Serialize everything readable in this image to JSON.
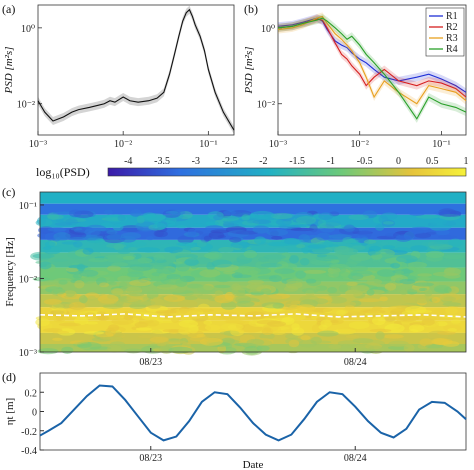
{
  "panels": {
    "a": {
      "letter": "(a)"
    },
    "b": {
      "letter": "(b)"
    },
    "c": {
      "letter": "(c)"
    },
    "d": {
      "letter": "(d)"
    }
  },
  "colorbar": {
    "label": "log₁₀(PSD)",
    "ticks": [
      "-4",
      "-3.5",
      "-3",
      "-2.5",
      "-2",
      "-1.5",
      "-1",
      "-0.5",
      "0",
      "0.5",
      "1"
    ],
    "range": [
      -4.3,
      1
    ],
    "colors": [
      "#3b1aa8",
      "#2f6fe0",
      "#21b1c4",
      "#6cc97a",
      "#e6c43b",
      "#f6f13a"
    ]
  },
  "chart_data": [
    {
      "type": "line",
      "panel": "a",
      "xscale": "log",
      "yscale": "log",
      "xlim": [
        0.001,
        0.2
      ],
      "ylim": [
        0.0015,
        4
      ],
      "ylabel": "PSD [m²s]",
      "xticks": [
        "10⁻³",
        "10⁻²",
        "10⁻¹"
      ],
      "yticks": [
        "10⁻²",
        "10⁰"
      ],
      "series": [
        {
          "color": "#111111",
          "x": [
            0.001,
            0.0012,
            0.0015,
            0.002,
            0.0025,
            0.003,
            0.004,
            0.005,
            0.006,
            0.007,
            0.008,
            0.009,
            0.01,
            0.012,
            0.015,
            0.02,
            0.025,
            0.03,
            0.035,
            0.04,
            0.045,
            0.05,
            0.055,
            0.06,
            0.065,
            0.07,
            0.08,
            0.09,
            0.1,
            0.12,
            0.15,
            0.2
          ],
          "y": [
            0.012,
            0.006,
            0.0035,
            0.0045,
            0.006,
            0.007,
            0.008,
            0.009,
            0.01,
            0.012,
            0.011,
            0.013,
            0.015,
            0.012,
            0.011,
            0.012,
            0.014,
            0.02,
            0.06,
            0.2,
            0.6,
            1.5,
            2.5,
            3.0,
            2.0,
            1.2,
            0.6,
            0.25,
            0.08,
            0.02,
            0.006,
            0.002
          ]
        }
      ]
    },
    {
      "type": "line",
      "panel": "b",
      "xscale": "log",
      "yscale": "log",
      "xlim": [
        0.001,
        0.2
      ],
      "ylim": [
        0.0015,
        4
      ],
      "ylabel": "PSD [m²s]",
      "xticks": [
        "10⁻³",
        "10⁻²",
        "10⁻¹"
      ],
      "yticks": [
        "10⁻²",
        "10⁰"
      ],
      "legend": "top-right",
      "series": [
        {
          "name": "R1",
          "color": "#1f2fd6",
          "x": [
            0.001,
            0.0015,
            0.002,
            0.003,
            0.0035,
            0.004,
            0.005,
            0.006,
            0.007,
            0.008,
            0.01,
            0.012,
            0.015,
            0.02,
            0.03,
            0.05,
            0.07,
            0.1,
            0.15,
            0.2
          ],
          "y": [
            1.1,
            1.2,
            1.4,
            1.8,
            1.5,
            0.9,
            0.45,
            0.35,
            0.3,
            0.22,
            0.15,
            0.12,
            0.08,
            0.05,
            0.04,
            0.05,
            0.06,
            0.045,
            0.03,
            0.02
          ]
        },
        {
          "name": "R2",
          "color": "#d62020",
          "x": [
            0.001,
            0.0015,
            0.002,
            0.003,
            0.0035,
            0.004,
            0.005,
            0.006,
            0.007,
            0.008,
            0.01,
            0.012,
            0.015,
            0.02,
            0.03,
            0.05,
            0.07,
            0.1,
            0.15,
            0.2
          ],
          "y": [
            1.0,
            1.1,
            1.3,
            1.7,
            1.6,
            1.0,
            0.4,
            0.2,
            0.15,
            0.1,
            0.06,
            0.03,
            0.05,
            0.08,
            0.04,
            0.03,
            0.04,
            0.035,
            0.025,
            0.015
          ]
        },
        {
          "name": "R3",
          "color": "#e8a020",
          "x": [
            0.001,
            0.0015,
            0.002,
            0.003,
            0.0035,
            0.004,
            0.005,
            0.006,
            0.007,
            0.008,
            0.01,
            0.012,
            0.015,
            0.02,
            0.03,
            0.05,
            0.07,
            0.1,
            0.15,
            0.2
          ],
          "y": [
            0.9,
            1.0,
            1.2,
            1.8,
            2.0,
            1.3,
            0.7,
            0.5,
            0.35,
            0.25,
            0.12,
            0.05,
            0.015,
            0.04,
            0.02,
            0.01,
            0.03,
            0.025,
            0.02,
            0.012
          ]
        },
        {
          "name": "R4",
          "color": "#2aa02a",
          "x": [
            0.001,
            0.0015,
            0.002,
            0.003,
            0.0035,
            0.004,
            0.005,
            0.006,
            0.007,
            0.008,
            0.01,
            0.012,
            0.015,
            0.02,
            0.03,
            0.05,
            0.07,
            0.1,
            0.15,
            0.2
          ],
          "y": [
            1.0,
            1.1,
            1.3,
            1.6,
            1.8,
            1.5,
            1.0,
            0.7,
            0.5,
            0.6,
            0.35,
            0.2,
            0.12,
            0.06,
            0.02,
            0.004,
            0.015,
            0.01,
            0.008,
            0.006
          ]
        }
      ]
    },
    {
      "type": "heatmap",
      "panel": "c",
      "yscale": "log",
      "ylim": [
        0.001,
        0.15
      ],
      "ylabel": "Frequency [Hz]",
      "yticks": [
        "10⁻³",
        "10⁻²",
        "10⁻¹"
      ],
      "xticks": [
        "08/23",
        "08/24"
      ],
      "rows": [
        {
          "f": 0.12,
          "value": -2.2
        },
        {
          "f": 0.09,
          "value": -3.2
        },
        {
          "f": 0.06,
          "value": -2.3
        },
        {
          "f": 0.04,
          "value": -3.3
        },
        {
          "f": 0.028,
          "value": -2.0
        },
        {
          "f": 0.018,
          "value": -1.5
        },
        {
          "f": 0.011,
          "value": -1.1
        },
        {
          "f": 0.0075,
          "value": -0.8
        },
        {
          "f": 0.005,
          "value": -0.4
        },
        {
          "f": 0.0033,
          "value": 0.3
        },
        {
          "f": 0.0022,
          "value": 0.4
        },
        {
          "f": 0.0015,
          "value": -0.3
        },
        {
          "f": 0.0011,
          "value": -0.6
        }
      ],
      "peak_line": {
        "color": "#ffffff",
        "t": [
          0,
          0.1,
          0.2,
          0.3,
          0.4,
          0.5,
          0.6,
          0.7,
          0.8,
          0.9,
          1.0
        ],
        "f": [
          0.0032,
          0.0031,
          0.0033,
          0.003,
          0.0032,
          0.0031,
          0.0033,
          0.003,
          0.0031,
          0.0032,
          0.003
        ]
      }
    },
    {
      "type": "line",
      "panel": "d",
      "ylim": [
        -0.4,
        0.4
      ],
      "xlabel": "Date",
      "ylabel": "ηt [m]",
      "yticks": [
        "-0.4",
        "-0.2",
        "0",
        "0.2"
      ],
      "xticks": [
        "08/23",
        "08/24"
      ],
      "series": [
        {
          "color": "#1a63a8",
          "t": [
            0.0,
            0.02,
            0.05,
            0.08,
            0.11,
            0.14,
            0.17,
            0.2,
            0.23,
            0.26,
            0.29,
            0.32,
            0.35,
            0.38,
            0.41,
            0.44,
            0.47,
            0.5,
            0.53,
            0.56,
            0.59,
            0.62,
            0.65,
            0.68,
            0.71,
            0.74,
            0.77,
            0.8,
            0.83,
            0.86,
            0.89,
            0.92,
            0.95,
            0.98,
            1.0
          ],
          "y": [
            -0.25,
            -0.2,
            -0.12,
            0.02,
            0.16,
            0.27,
            0.26,
            0.12,
            -0.05,
            -0.22,
            -0.3,
            -0.26,
            -0.1,
            0.1,
            0.2,
            0.18,
            0.04,
            -0.12,
            -0.24,
            -0.3,
            -0.24,
            -0.08,
            0.1,
            0.2,
            0.18,
            0.05,
            -0.1,
            -0.22,
            -0.27,
            -0.18,
            0.02,
            0.1,
            0.09,
            0.0,
            -0.08
          ]
        }
      ]
    }
  ]
}
